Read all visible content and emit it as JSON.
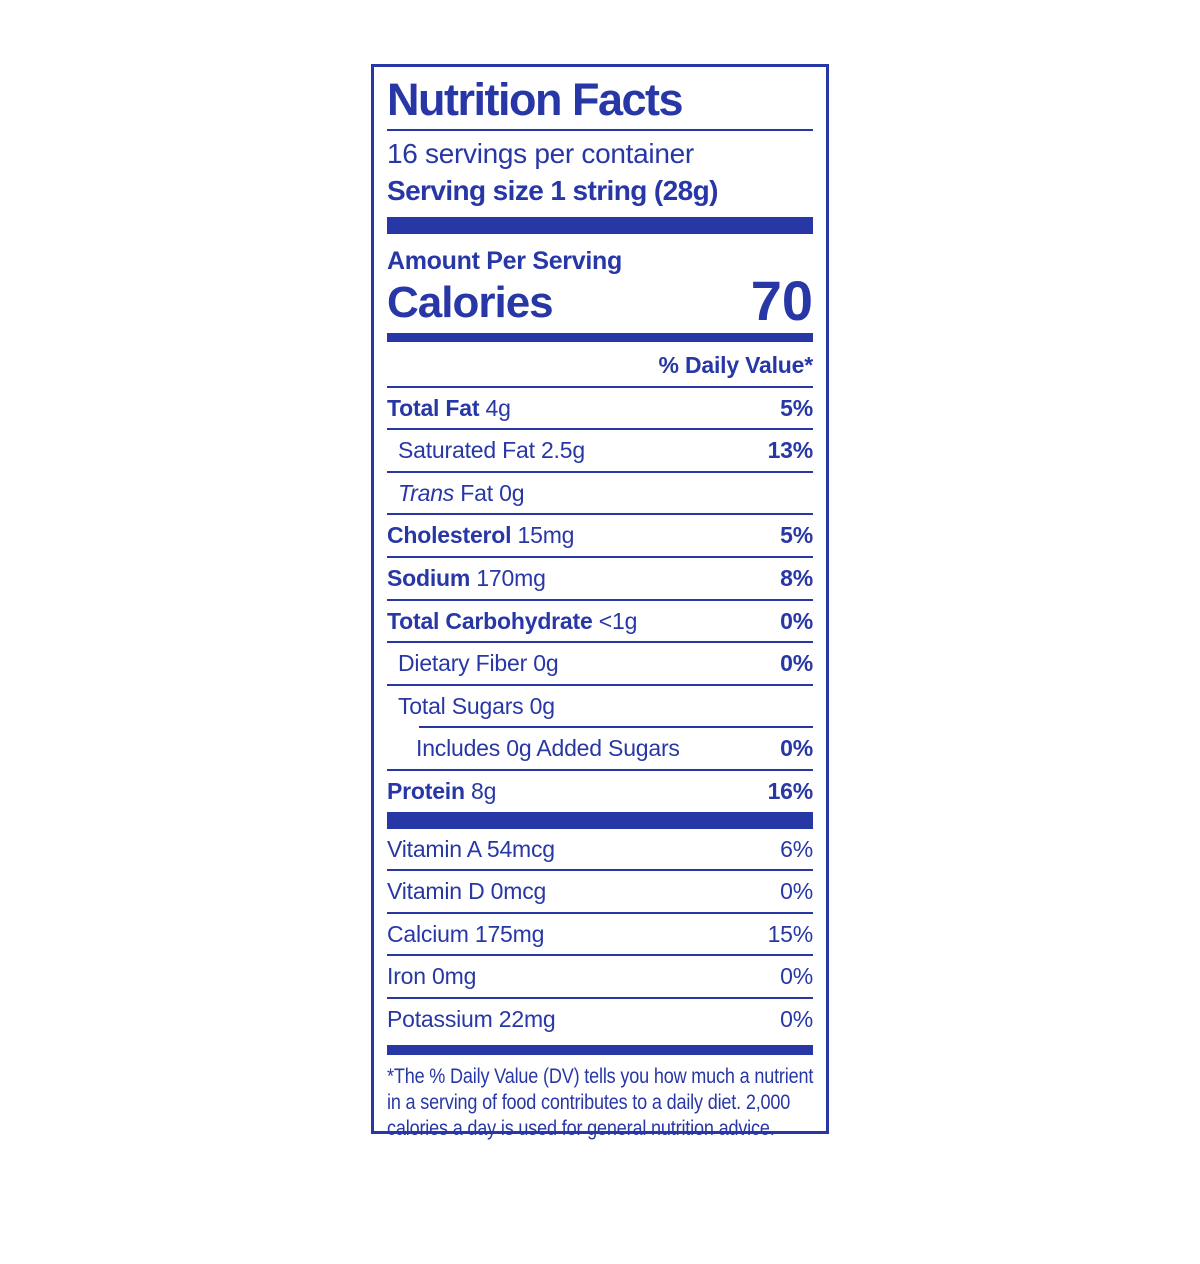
{
  "colors": {
    "blue": "#2837a6"
  },
  "label": {
    "title": "Nutrition Facts",
    "servings_per_container": "16 servings per container",
    "serving_size": "Serving size 1 string (28g)",
    "amount_per_serving": "Amount Per Serving",
    "calories_label": "Calories",
    "calories_value": "70",
    "daily_value_header": "% Daily Value*",
    "nutrient_rows": [
      {
        "name": "Total Fat",
        "amount": "4g",
        "dv": "5%",
        "bold": true,
        "indent": 0
      },
      {
        "name": "Saturated Fat",
        "amount": "2.5g",
        "dv": "13%",
        "bold": false,
        "indent": 1
      },
      {
        "name_italic": "Trans",
        "name": "Fat",
        "amount": "0g",
        "dv": "",
        "bold": false,
        "indent": 1
      },
      {
        "name": "Cholesterol",
        "amount": "15mg",
        "dv": "5%",
        "bold": true,
        "indent": 0
      },
      {
        "name": "Sodium",
        "amount": "170mg",
        "dv": "8%",
        "bold": true,
        "indent": 0
      },
      {
        "name": "Total Carbohydrate",
        "amount": "<1g",
        "dv": "0%",
        "bold": true,
        "indent": 0
      },
      {
        "name": "Dietary Fiber",
        "amount": "0g",
        "dv": "0%",
        "bold": false,
        "indent": 1
      },
      {
        "name": "Total Sugars",
        "amount": "0g",
        "dv": "",
        "bold": false,
        "indent": 1,
        "divider_below": "partial"
      },
      {
        "name": "Includes 0g Added Sugars",
        "amount": "",
        "dv": "0%",
        "bold": false,
        "indent": 2
      },
      {
        "name": "Protein",
        "amount": "8g",
        "dv": "16%",
        "bold": true,
        "indent": 0
      }
    ],
    "vitamin_rows": [
      {
        "name": "Vitamin A",
        "amount": "54mcg",
        "dv": "6%"
      },
      {
        "name": "Vitamin D",
        "amount": "0mcg",
        "dv": "0%"
      },
      {
        "name": "Calcium",
        "amount": "175mg",
        "dv": "15%"
      },
      {
        "name": "Iron",
        "amount": "0mg",
        "dv": "0%"
      },
      {
        "name": "Potassium",
        "amount": "22mg",
        "dv": "0%"
      }
    ],
    "footnote_lines": [
      "*The % Daily Value (DV) tells you how much a nutrient",
      "in a serving of food contributes to a daily diet. 2,000",
      "calories a day is used for general nutrition advice."
    ]
  }
}
